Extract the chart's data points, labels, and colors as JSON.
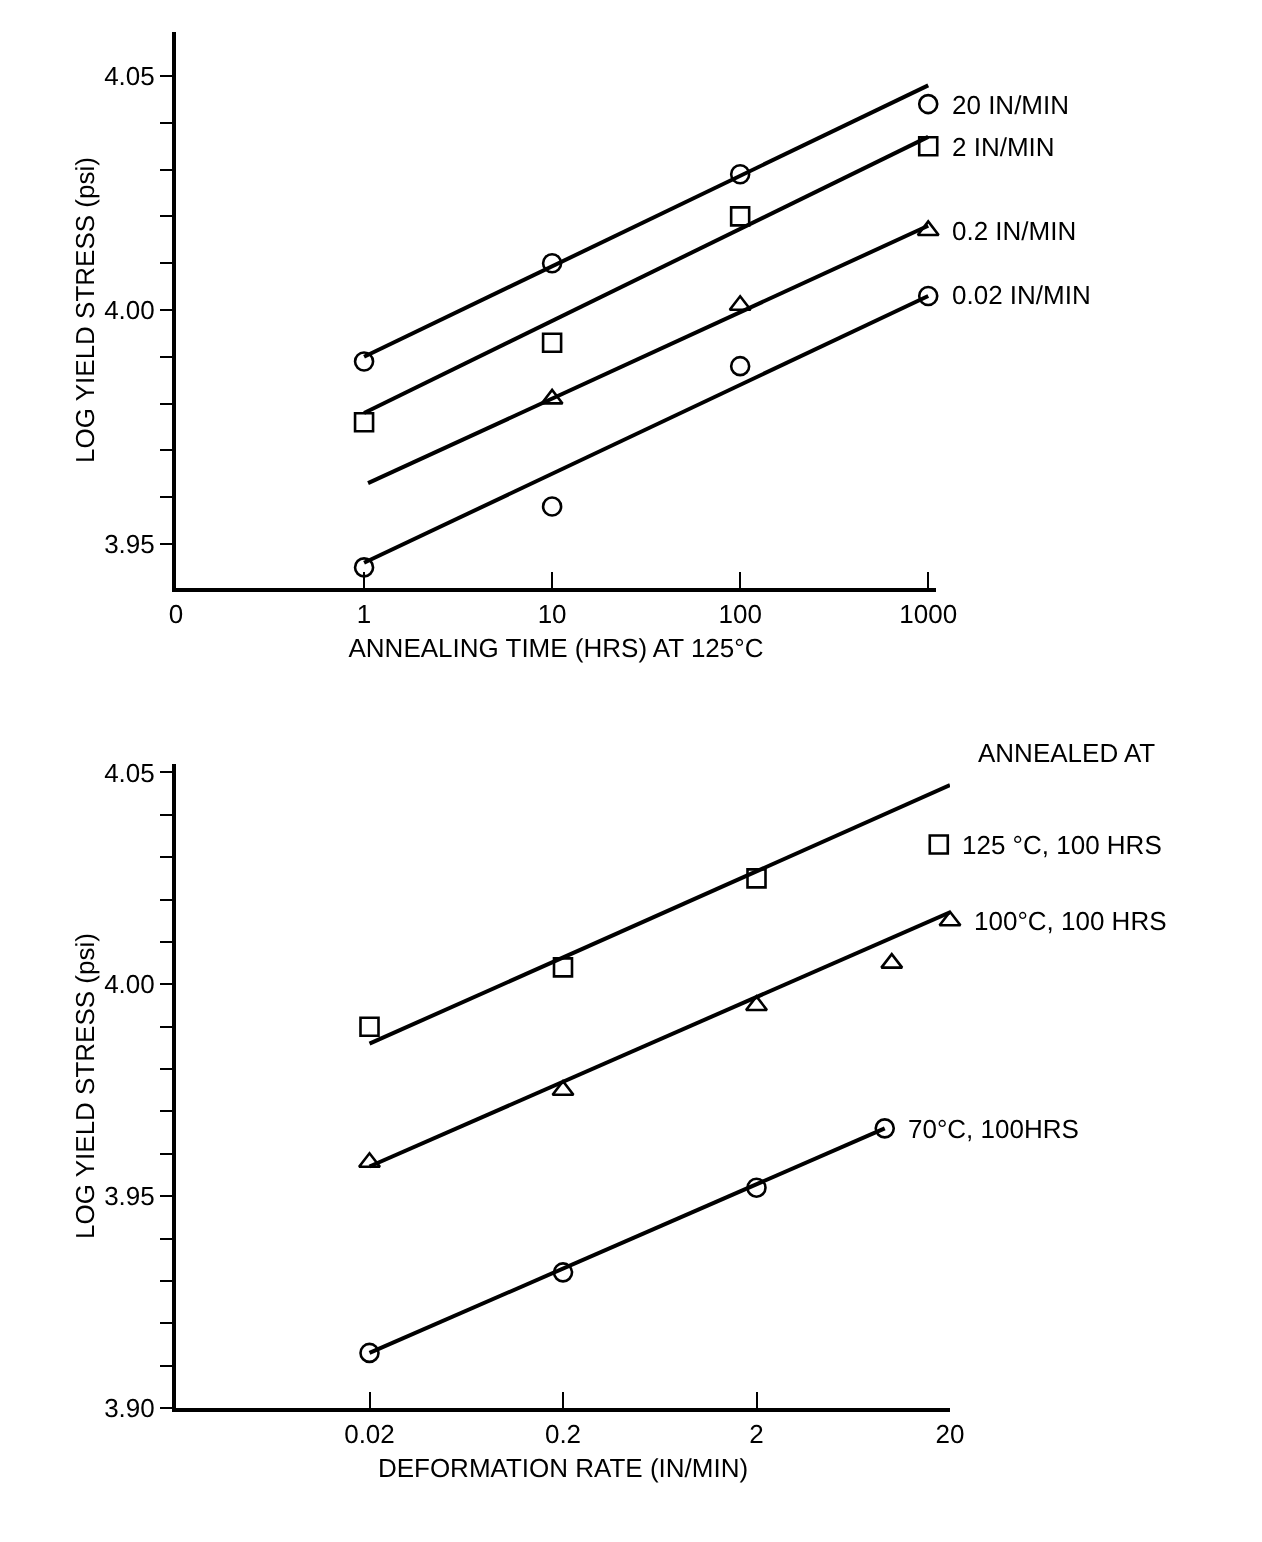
{
  "chart_data": [
    {
      "type": "scatter",
      "xlabel": "ANNEALING TIME (HRS) AT 125°C",
      "ylabel": "LOG YIELD STRESS (psi)",
      "log": "x",
      "xlim": [
        0.1,
        1100
      ],
      "ylim": [
        3.9406,
        4.0594
      ],
      "xticks": [
        {
          "value": 0.1,
          "label": "0"
        },
        {
          "value": 1,
          "label": "1"
        },
        {
          "value": 10,
          "label": "10"
        },
        {
          "value": 100,
          "label": "100"
        },
        {
          "value": 1000,
          "label": "1000"
        }
      ],
      "yticks": [
        {
          "value": 3.95,
          "label": "3.95"
        },
        {
          "value": 3.96,
          "label": null
        },
        {
          "value": 3.97,
          "label": null
        },
        {
          "value": 3.98,
          "label": null
        },
        {
          "value": 3.99,
          "label": null
        },
        {
          "value": 4.0,
          "label": "4.00"
        },
        {
          "value": 4.01,
          "label": null
        },
        {
          "value": 4.02,
          "label": null
        },
        {
          "value": 4.03,
          "label": null
        },
        {
          "value": 4.04,
          "label": null
        },
        {
          "value": 4.05,
          "label": "4.05"
        }
      ],
      "grid": false,
      "series": [
        {
          "name": "20 IN/MIN",
          "color": "#000000",
          "marker": "circle",
          "x": [
            1,
            10,
            100,
            1000
          ],
          "values": [
            3.989,
            4.01,
            4.029,
            4.044
          ]
        },
        {
          "name": "2 IN/MIN",
          "color": "#000000",
          "marker": "square",
          "x": [
            1,
            10,
            100,
            1000
          ],
          "values": [
            3.976,
            3.993,
            4.02,
            4.035
          ]
        },
        {
          "name": "0.2 IN/MIN",
          "color": "#000000",
          "marker": "triangle",
          "x": [
            10,
            100,
            1000
          ],
          "values": [
            3.981,
            4.001,
            4.017
          ]
        },
        {
          "name": "0.02 IN/MIN",
          "color": "#000000",
          "marker": "circle",
          "x": [
            1,
            10,
            100,
            1000
          ],
          "values": [
            3.945,
            3.958,
            3.988,
            4.003
          ]
        },
        {
          "type": "line",
          "color": "#000000",
          "line_style": "solid",
          "x": [
            1,
            1000
          ],
          "values": [
            3.99,
            4.048
          ]
        },
        {
          "type": "line",
          "color": "#000000",
          "line_style": "solid",
          "x": [
            1,
            1000
          ],
          "values": [
            3.978,
            4.037
          ]
        },
        {
          "type": "line",
          "color": "#000000",
          "line_style": "solid",
          "x": [
            1.05,
            1000
          ],
          "values": [
            3.963,
            4.018
          ]
        },
        {
          "type": "line",
          "color": "#000000",
          "line_style": "solid",
          "x": [
            1,
            1000
          ],
          "values": [
            3.946,
            4.003
          ]
        }
      ]
    },
    {
      "type": "scatter",
      "xlabel": "DEFORMATION RATE (IN/MIN)",
      "ylabel": "LOG YIELD STRESS (psi)",
      "log": "x",
      "xlim": [
        0.002,
        20
      ],
      "ylim": [
        3.9,
        4.052
      ],
      "xticks": [
        0.02,
        0.2,
        2,
        20
      ],
      "yticks": [
        {
          "value": 3.9,
          "label": "3.90"
        },
        {
          "value": 3.91,
          "label": null
        },
        {
          "value": 3.92,
          "label": null
        },
        {
          "value": 3.93,
          "label": null
        },
        {
          "value": 3.94,
          "label": null
        },
        3.95,
        {
          "value": 3.96,
          "label": null
        },
        {
          "value": 3.97,
          "label": null
        },
        {
          "value": 3.98,
          "label": null
        },
        {
          "value": 3.99,
          "label": null
        },
        {
          "value": 4.0,
          "label": "4.00"
        },
        {
          "value": 4.01,
          "label": null
        },
        {
          "value": 4.02,
          "label": null
        },
        {
          "value": 4.03,
          "label": null
        },
        {
          "value": 4.04,
          "label": null
        },
        4.05
      ],
      "grid": false,
      "annotations": [
        "ANNEALED AT"
      ],
      "series": [
        {
          "name": "125 °C, 100 HRS",
          "color": "#000000",
          "marker": "square",
          "x": [
            0.02,
            0.2,
            2,
            17.5
          ],
          "values": [
            3.99,
            4.004,
            4.025,
            4.033
          ]
        },
        {
          "name": "100°C, 100 HRS",
          "color": "#000000",
          "marker": "triangle",
          "x": [
            0.02,
            0.2,
            2,
            10,
            20
          ],
          "values": [
            3.958,
            3.975,
            3.995,
            4.005,
            4.015
          ]
        },
        {
          "name": "70°C, 100HRS",
          "color": "#000000",
          "marker": "circle",
          "x": [
            0.02,
            0.2,
            2,
            9.2
          ],
          "values": [
            3.913,
            3.932,
            3.952,
            3.966
          ]
        },
        {
          "type": "line",
          "color": "#000000",
          "line_style": "solid",
          "x": [
            0.02,
            20
          ],
          "values": [
            3.986,
            4.047
          ]
        },
        {
          "type": "line",
          "color": "#000000",
          "line_style": "solid",
          "x": [
            0.02,
            20
          ],
          "values": [
            3.957,
            4.017
          ]
        },
        {
          "type": "line",
          "color": "#000000",
          "line_style": "solid",
          "x": [
            0.02,
            9.2
          ],
          "values": [
            3.913,
            3.966
          ]
        }
      ]
    }
  ]
}
